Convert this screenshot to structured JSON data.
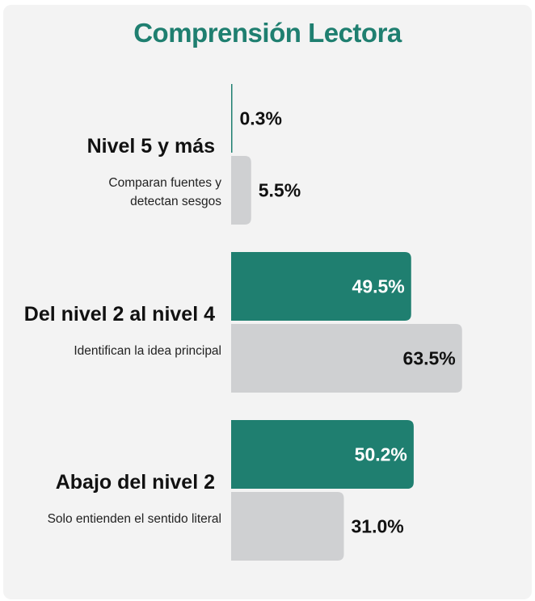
{
  "chart_data": {
    "type": "bar",
    "orientation": "horizontal",
    "title": "Comprensión Lectora",
    "categories": [
      {
        "label": "Nivel 5 y más",
        "description_lines": [
          "Comparan fuentes y",
          "detectan sesgos"
        ]
      },
      {
        "label": "Del nivel 2 al nivel 4",
        "description_lines": [
          "Identifican la idea principal"
        ]
      },
      {
        "label": "Abajo del nivel 2",
        "description_lines": [
          "Solo entienden el sentido literal"
        ]
      }
    ],
    "series": [
      {
        "values": [
          0.3,
          49.5,
          50.2
        ],
        "labels": [
          "0.3%",
          "49.5%",
          "50.2%"
        ],
        "color": "#1f7f70"
      },
      {
        "values": [
          5.5,
          63.5,
          31.0
        ],
        "labels": [
          "5.5%",
          "63.5%",
          "31.0%"
        ],
        "color": "#cfd0d2"
      }
    ],
    "xlim": [
      0,
      70
    ],
    "grid": false,
    "legend": false
  },
  "colors": {
    "title": "#1f7f70",
    "background": "#f3f3f3",
    "label_on_dark": "#ffffff",
    "label_on_light": "#111111"
  }
}
